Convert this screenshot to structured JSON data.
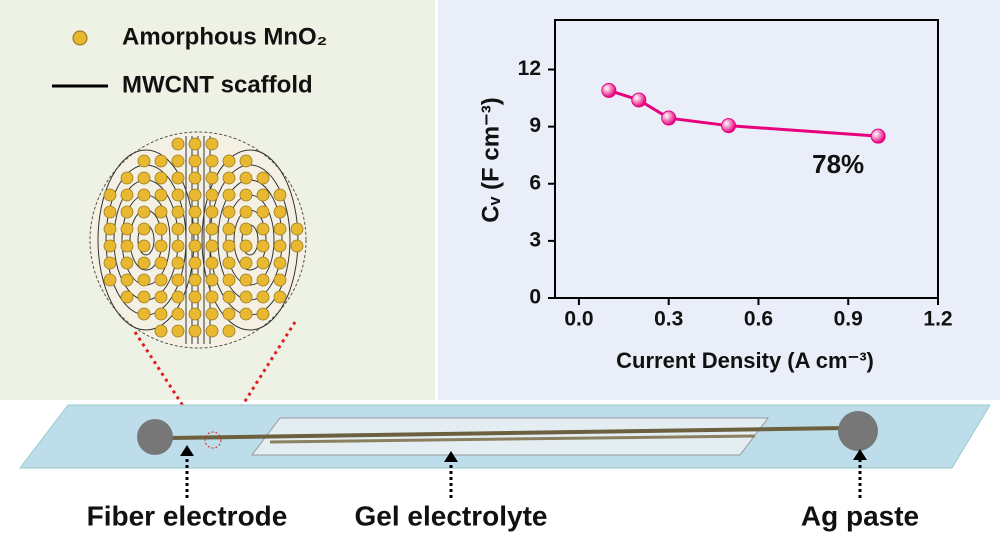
{
  "legend": {
    "particle": "Amorphous MnO₂",
    "line": "MWCNT scaffold"
  },
  "chart_data": {
    "type": "line",
    "x": [
      0.1,
      0.2,
      0.3,
      0.5,
      1.0
    ],
    "series": [
      {
        "name": null,
        "color": "#e6007e",
        "values": [
          10.9,
          10.4,
          9.45,
          9.05,
          8.5
        ]
      }
    ],
    "xlabel": "Current Density (A cm⁻³)",
    "ylabel": "Cᵥ (F cm⁻³)",
    "annotation": "78%",
    "xlim": [
      -0.08,
      1.2
    ],
    "ylim": [
      0,
      14.6
    ],
    "xticks": [
      {
        "value": 0,
        "label": "0.0"
      },
      0.3,
      0.6,
      0.9,
      1.2
    ],
    "yticks": [
      0,
      3,
      6,
      9,
      12
    ]
  },
  "device": {
    "labels": [
      "Fiber electrode",
      "Gel electrolyte",
      "Ag paste"
    ]
  }
}
